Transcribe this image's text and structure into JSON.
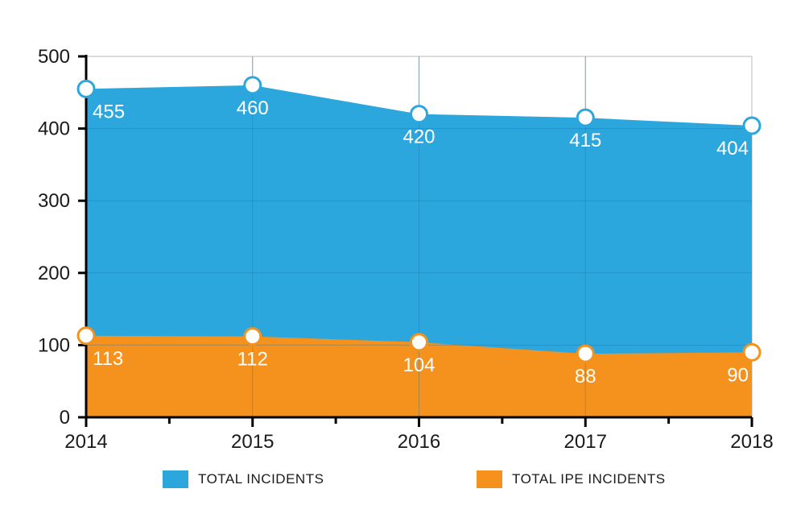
{
  "chart_data": {
    "type": "area",
    "categories": [
      "2014",
      "2015",
      "2016",
      "2017",
      "2018"
    ],
    "ylim": [
      0,
      500
    ],
    "yticks": [
      0,
      100,
      200,
      300,
      400,
      500
    ],
    "series": [
      {
        "name": "TOTAL INCIDENTS",
        "values": [
          455,
          460,
          420,
          415,
          404
        ],
        "color": "#2ca7de"
      },
      {
        "name": "TOTAL IPE INCIDENTS",
        "values": [
          113,
          112,
          104,
          88,
          90
        ],
        "color": "#f5921e"
      }
    ],
    "grid": true,
    "legend_position": "bottom"
  },
  "colors": {
    "axis": "#000000",
    "grid": "#b8b8b8",
    "marker_fill": "#ffffff"
  }
}
